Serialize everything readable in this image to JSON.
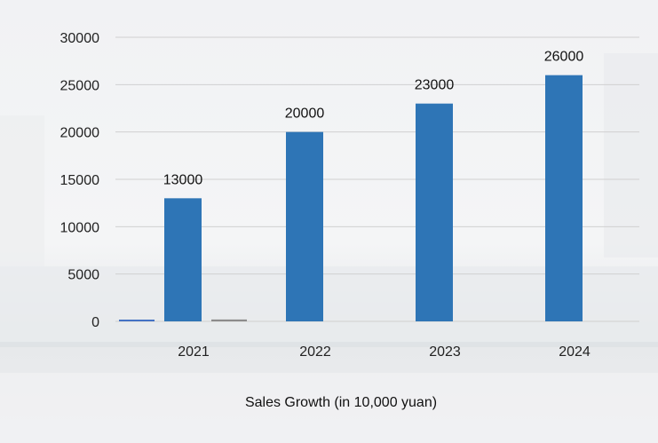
{
  "chart_data": {
    "type": "bar",
    "title": "",
    "xlabel": "Sales Growth (in 10,000 yuan)",
    "ylabel": "",
    "categories": [
      "2021",
      "2022",
      "2023",
      "2024"
    ],
    "series": [
      {
        "values": [
          13000,
          20000,
          23000,
          26000
        ],
        "data_labels": [
          "13000",
          "20000",
          "23000",
          "26000"
        ]
      },
      {
        "values": [
          150,
          0,
          0,
          0
        ]
      },
      {
        "values": [
          200,
          0,
          0,
          0
        ]
      }
    ],
    "ylim": [
      0,
      30000
    ],
    "yticks": [
      0,
      5000,
      10000,
      15000,
      20000,
      25000,
      30000
    ],
    "grid": true,
    "legend": "none",
    "colors": {
      "main_bar": "#2e75b6",
      "minor_bar_1": "#4472c4",
      "minor_bar_2": "#8c8c8c",
      "gridline": "#d0d0d0"
    }
  }
}
